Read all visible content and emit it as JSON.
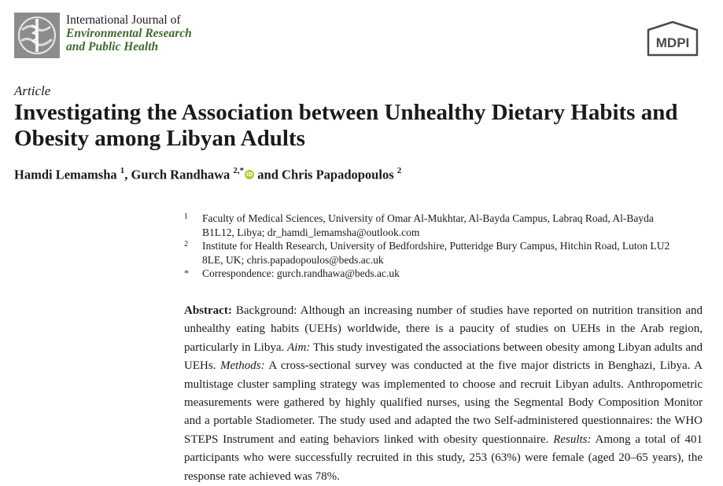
{
  "header": {
    "journal_prefix": "International Journal of",
    "journal_name_line1": "Environmental Research",
    "journal_name_line2": "and Public Health",
    "publisher": "MDPI"
  },
  "article": {
    "type": "Article",
    "title": "Investigating the Association between Unhealthy Dietary Habits and Obesity among Libyan Adults",
    "authors": [
      {
        "name": "Hamdi Lemamsha",
        "sup": "1"
      },
      {
        "name": "Gurch Randhawa",
        "sup": "2,*"
      },
      {
        "name": "Chris Papadopoulos",
        "sup": "2"
      }
    ],
    "separator_comma": ",",
    "separator_and": "and"
  },
  "affiliations": [
    {
      "mark": "1",
      "text": "Faculty of Medical Sciences, University of Omar Al-Mukhtar, Al-Bayda Campus, Labraq Road, Al-Bayda B1L12, Libya; dr_hamdi_lemamsha@outlook.com"
    },
    {
      "mark": "2",
      "text": "Institute for Health Research, University of Bedfordshire, Putteridge Bury Campus, Hitchin Road, Luton LU2 8LE, UK; chris.papadopoulos@beds.ac.uk"
    },
    {
      "mark": "*",
      "text": "Correspondence: gurch.randhawa@beds.ac.uk"
    }
  ],
  "abstract": {
    "label": "Abstract:",
    "background": "Background: Although an increasing number of studies have reported on nutrition transition and unhealthy eating habits (UEHs) worldwide, there is a paucity of studies on UEHs in the Arab region, particularly in Libya.",
    "aim_label": "Aim:",
    "aim": "This study investigated the associations between obesity among Libyan adults and UEHs.",
    "methods_label": "Methods:",
    "methods": "A cross-sectional survey was conducted at the five major districts in Benghazi, Libya. A multistage cluster sampling strategy was implemented to choose and recruit Libyan adults. Anthropometric measurements were gathered by highly qualified nurses, using the Segmental Body Composition Monitor and a portable Stadiometer. The study used and adapted the two Self-administered questionnaires: the WHO STEPS Instrument and eating behaviors linked with obesity questionnaire.",
    "results_label": "Results:",
    "results": "Among a total of 401 participants who were successfully recruited in this study, 253 (63%) were female (aged 20–65 years), the response rate achieved was 78%."
  }
}
